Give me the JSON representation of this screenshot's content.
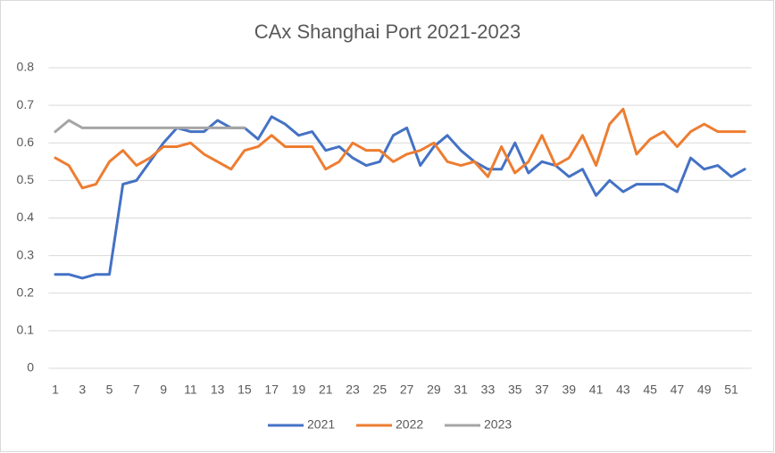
{
  "chart_data": {
    "type": "line",
    "title": "CAx Shanghai Port 2021-2023",
    "categories": [
      1,
      null,
      3,
      null,
      5,
      null,
      7,
      null,
      9,
      null,
      11,
      null,
      13,
      null,
      15,
      null,
      17,
      null,
      19,
      null,
      21,
      null,
      23,
      null,
      25,
      null,
      27,
      null,
      29,
      null,
      31,
      null,
      33,
      null,
      35,
      null,
      37,
      null,
      39,
      null,
      41,
      null,
      43,
      null,
      45,
      null,
      47,
      null,
      49,
      null,
      51,
      null
    ],
    "series": [
      {
        "name": "2021",
        "color": "#4472c4",
        "values": [
          0.25,
          0.25,
          0.24,
          0.25,
          0.25,
          0.49,
          0.5,
          0.55,
          0.6,
          0.64,
          0.63,
          0.63,
          0.66,
          0.64,
          0.64,
          0.61,
          0.67,
          0.65,
          0.62,
          0.63,
          0.58,
          0.59,
          0.56,
          0.54,
          0.55,
          0.62,
          0.64,
          0.54,
          0.59,
          0.62,
          0.58,
          0.55,
          0.53,
          0.53,
          0.6,
          0.52,
          0.55,
          0.54,
          0.51,
          0.53,
          0.46,
          0.5,
          0.47,
          0.49,
          0.49,
          0.49,
          0.47,
          0.56,
          0.53,
          0.54,
          0.51,
          0.53
        ]
      },
      {
        "name": "2022",
        "color": "#ed7d31",
        "values": [
          0.56,
          0.54,
          0.48,
          0.49,
          0.55,
          0.58,
          0.54,
          0.56,
          0.59,
          0.59,
          0.6,
          0.57,
          0.55,
          0.53,
          0.58,
          0.59,
          0.62,
          0.59,
          0.59,
          0.59,
          0.53,
          0.55,
          0.6,
          0.58,
          0.58,
          0.55,
          0.57,
          0.58,
          0.6,
          0.55,
          0.54,
          0.55,
          0.51,
          0.59,
          0.52,
          0.55,
          0.62,
          0.54,
          0.56,
          0.62,
          0.54,
          0.65,
          0.69,
          0.57,
          0.61,
          0.63,
          0.59,
          0.63,
          0.65,
          0.63,
          0.63,
          0.63
        ]
      },
      {
        "name": "2023",
        "color": "#a5a5a5",
        "values": [
          0.63,
          0.66,
          0.64,
          0.64,
          0.64,
          0.64,
          0.64,
          0.64,
          0.64,
          0.64,
          0.64,
          0.64,
          0.64,
          0.64,
          0.64,
          null,
          null,
          null,
          null,
          null,
          null,
          null,
          null,
          null,
          null,
          null,
          null,
          null,
          null,
          null,
          null,
          null,
          null,
          null,
          null,
          null,
          null,
          null,
          null,
          null,
          null,
          null,
          null,
          null,
          null,
          null,
          null,
          null,
          null,
          null,
          null,
          null
        ]
      }
    ],
    "ylim": [
      0,
      0.8
    ],
    "yticks": [
      0,
      0.1,
      0.2,
      0.3,
      0.4,
      0.5,
      0.6,
      0.7,
      0.8
    ],
    "grid": true,
    "legend": "bottom"
  }
}
